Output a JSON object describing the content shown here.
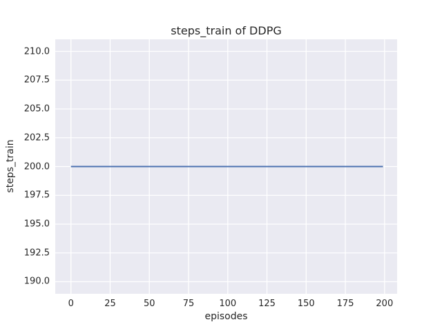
{
  "figure": {
    "background_color": "#ffffff",
    "axes_background_color": "#eaeaf2",
    "grid_color": "#ffffff",
    "text_color": "#262626"
  },
  "chart_data": {
    "type": "line",
    "title": "steps_train of DDPG",
    "xlabel": "episodes",
    "ylabel": "steps_train",
    "xlim": [
      -10,
      208
    ],
    "ylim": [
      188.95,
      211.05
    ],
    "xticks": [
      0,
      25,
      50,
      75,
      100,
      125,
      150,
      175,
      200
    ],
    "xtick_labels": [
      "0",
      "25",
      "50",
      "75",
      "100",
      "125",
      "150",
      "175",
      "200"
    ],
    "yticks": [
      190.0,
      192.5,
      195.0,
      197.5,
      200.0,
      202.5,
      205.0,
      207.5,
      210.0
    ],
    "ytick_labels": [
      "190.0",
      "192.5",
      "195.0",
      "197.5",
      "200.0",
      "202.5",
      "205.0",
      "207.5",
      "210.0"
    ],
    "grid": true,
    "legend_position": "none",
    "series": [
      {
        "name": "steps_train",
        "color": "#4c72b0",
        "x": [
          0,
          199
        ],
        "y": [
          200,
          200
        ]
      }
    ]
  }
}
